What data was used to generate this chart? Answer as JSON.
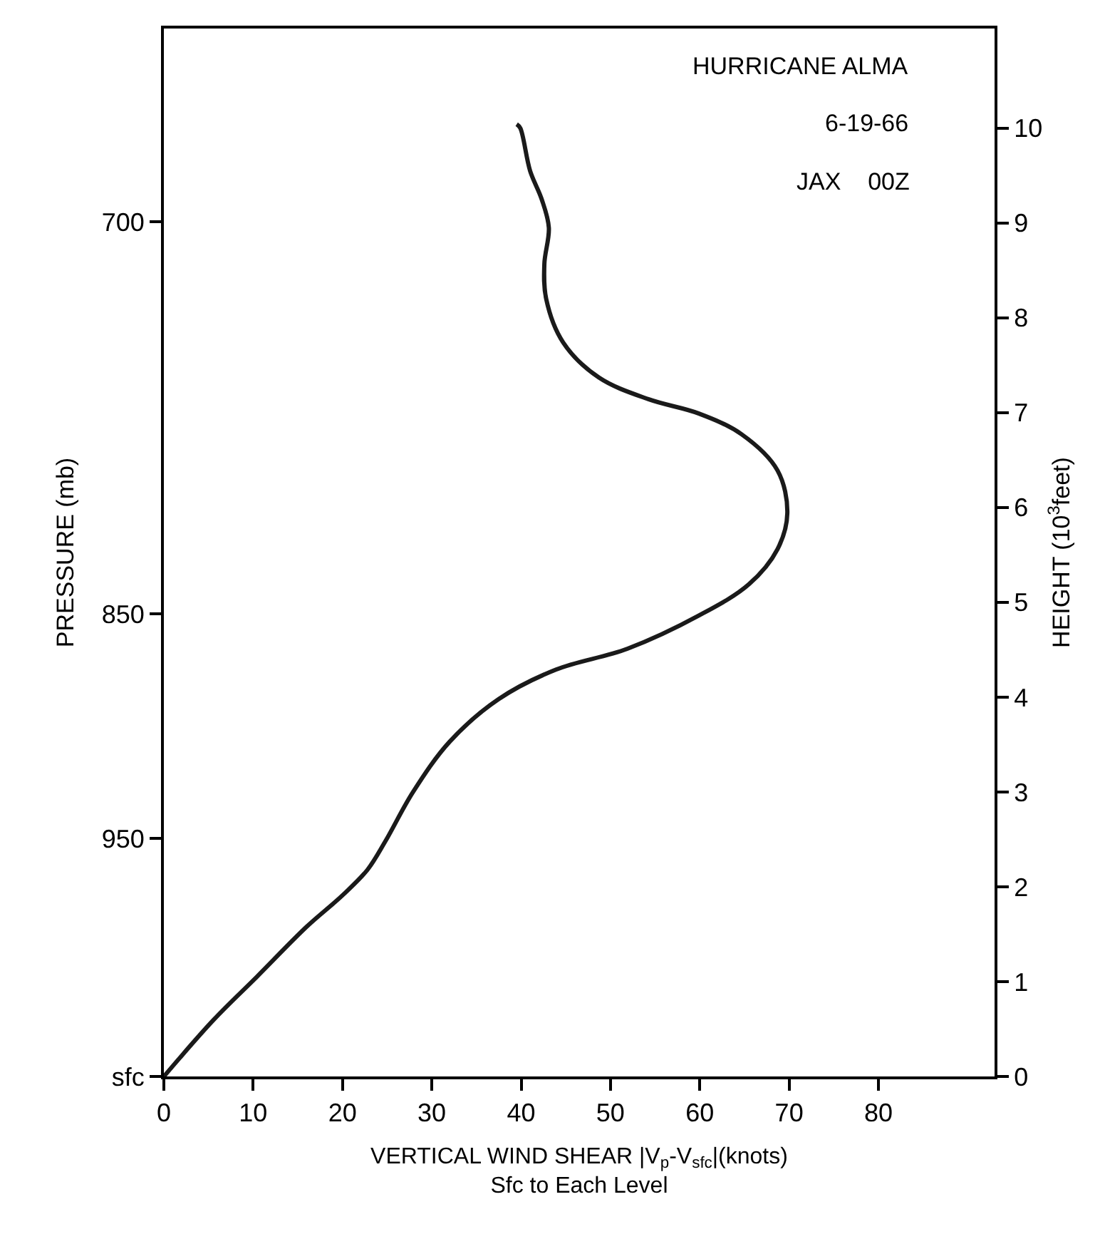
{
  "chart_data": {
    "type": "line",
    "xlabel": "VERTICAL WIND SHEAR |V$_{p}$-V$_{sfc}$|(knots)\nSfc to Each Level",
    "ylabel": "PRESSURE (mb)",
    "y2label": "HEIGHT (10$^{3}$feet)",
    "annotations": [
      "HURRICANE ALMA",
      "6-19-66",
      "JAX    00Z"
    ],
    "xlim": [
      0,
      93
    ],
    "xticks": [
      0,
      10,
      20,
      30,
      40,
      50,
      60,
      70,
      80
    ],
    "log": "y",
    "ylim": [
      1069,
      636
    ],
    "yticks": [
      700,
      850,
      950,
      {
        "value": 1069,
        "label": "sfc"
      }
    ],
    "y2lim": [
      0,
      11.05
    ],
    "y2ticks": [
      0,
      1,
      2,
      3,
      4,
      5,
      6,
      7,
      8,
      9,
      10
    ],
    "marker": "none",
    "line_style": "solid",
    "series": [
      {
        "color": "#1a1a1a",
        "axis": "y2",
        "x": [
          0,
          5.6,
          10.4,
          16,
          20,
          22.8,
          24.8,
          27.9,
          32,
          37.5,
          43.9,
          51.9,
          59.9,
          65.5,
          68.7,
          69.8,
          68.7,
          64.7,
          59.9,
          54.3,
          48.7,
          44.7,
          42.8,
          42.6,
          43.1,
          42.3,
          41,
          39.9,
          39.5
        ],
        "values": [
          0,
          0.6,
          1.05,
          1.58,
          1.91,
          2.18,
          2.48,
          3.0,
          3.53,
          3.98,
          4.29,
          4.51,
          4.86,
          5.19,
          5.56,
          5.94,
          6.39,
          6.77,
          6.99,
          7.14,
          7.37,
          7.74,
          8.2,
          8.57,
          8.95,
          9.25,
          9.55,
          10.0,
          10.04
        ]
      }
    ]
  }
}
